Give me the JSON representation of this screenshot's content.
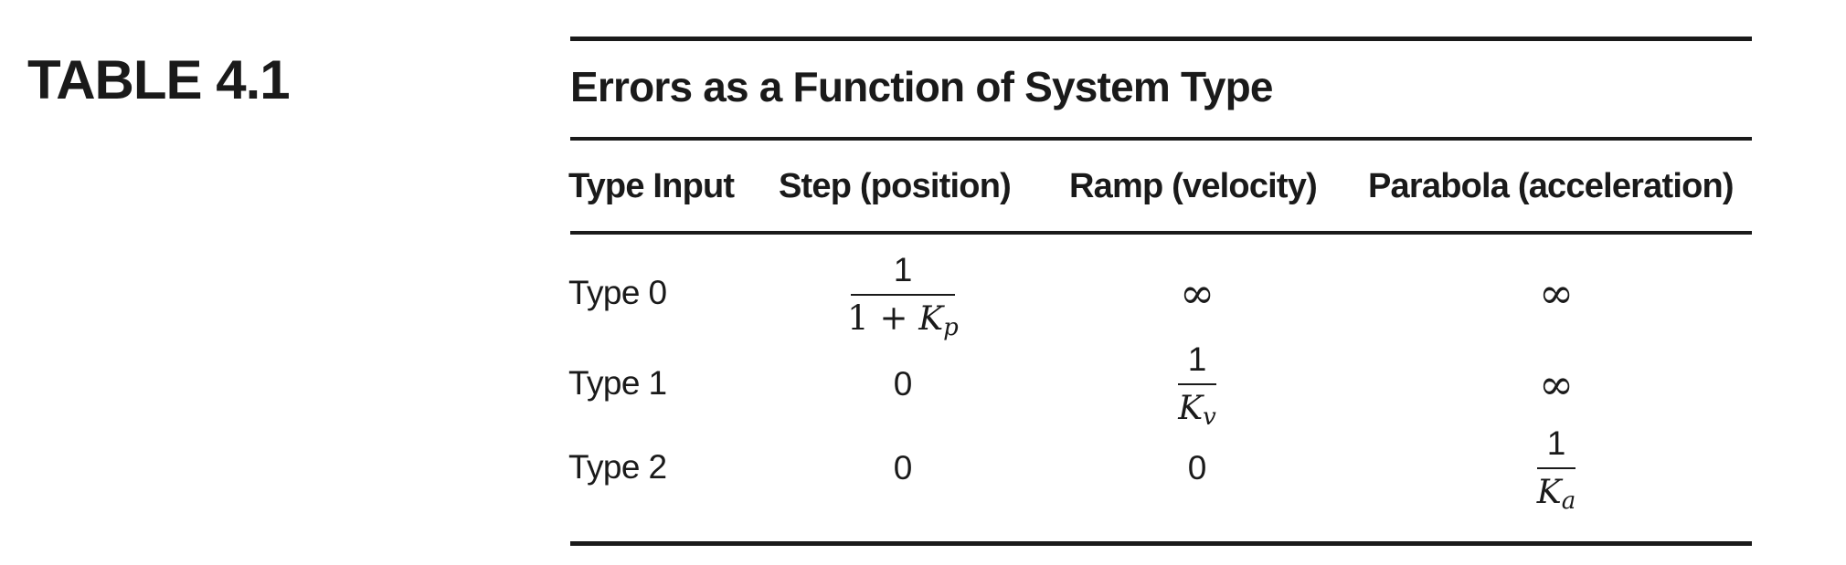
{
  "table_label": "TABLE 4.1",
  "caption": "Errors as a Function of System Type",
  "columns": [
    "Type Input",
    "Step (position)",
    "Ramp (velocity)",
    "Parabola (acceleration)"
  ],
  "rows": [
    {
      "label": "Type 0",
      "step": {
        "numerator": "1",
        "denominator_prefix": "1 + ",
        "var": "K",
        "sub": "p"
      },
      "ramp": "∞",
      "parabola": "∞"
    },
    {
      "label": "Type 1",
      "step": "0",
      "ramp": {
        "numerator": "1",
        "var": "K",
        "sub": "v"
      },
      "parabola": "∞"
    },
    {
      "label": "Type 2",
      "step": "0",
      "ramp": "0",
      "parabola": {
        "numerator": "1",
        "var": "K",
        "sub": "a"
      }
    }
  ]
}
